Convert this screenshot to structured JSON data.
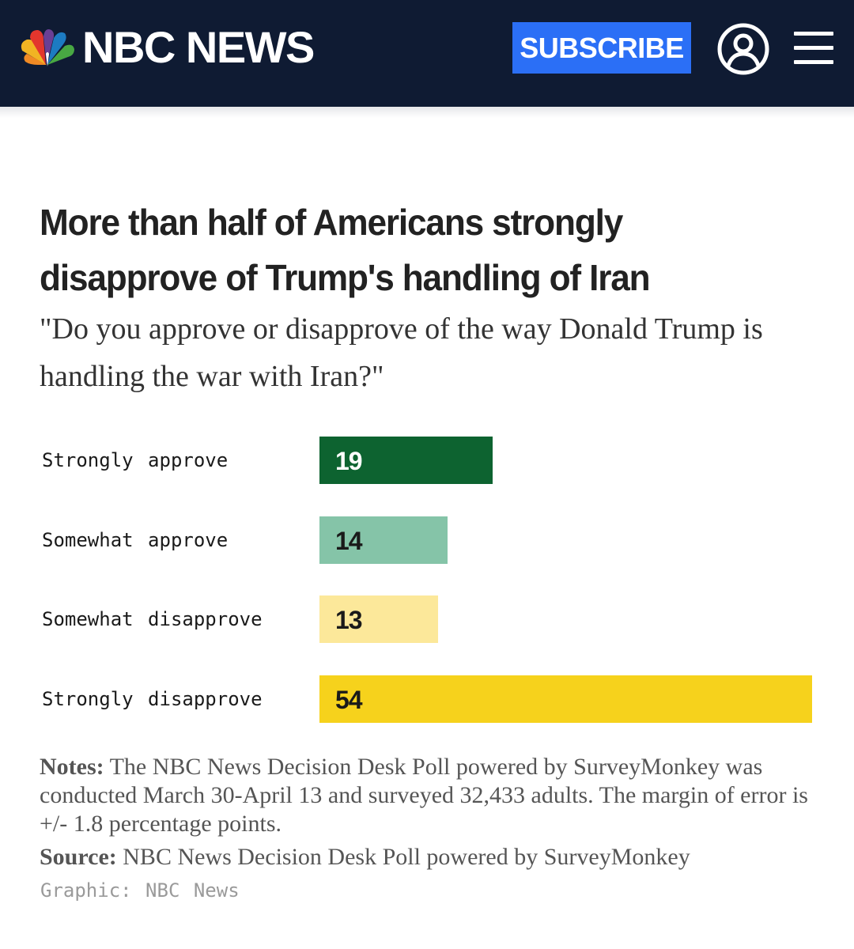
{
  "header": {
    "brand": "NBC NEWS",
    "subscribe_label": "SUBSCRIBE",
    "account_icon": "account-icon",
    "menu_icon": "hamburger-menu-icon",
    "background_color": "#0f1b33",
    "subscribe_color": "#2b6ff6"
  },
  "chart_data": {
    "type": "bar",
    "orientation": "horizontal",
    "title": "More than half of Americans strongly disapprove of Trump's handling of Iran",
    "subtitle": "\"Do you approve or disapprove of the way Donald Trump is handling the war with Iran?\"",
    "categories": [
      "Strongly approve",
      "Somewhat approve",
      "Somewhat disapprove",
      "Strongly disapprove"
    ],
    "values": [
      19,
      14,
      13,
      54
    ],
    "colors": [
      "#0d6330",
      "#85c4a8",
      "#fce89a",
      "#f6d21c"
    ],
    "value_label_colors": [
      "#ffffff",
      "#1a1a1a",
      "#1a1a1a",
      "#1a1a1a"
    ],
    "xlim": [
      0,
      54
    ],
    "xlabel": "",
    "ylabel": "",
    "grid": false
  },
  "notes": {
    "label": "Notes:",
    "text": " The NBC News Decision Desk Poll powered by SurveyMonkey was conducted March 30-April 13 and surveyed 32,433 adults. The margin of error is +/- 1.8 percentage points."
  },
  "source": {
    "label": "Source:",
    "text": " NBC News Decision Desk Poll powered by SurveyMonkey"
  },
  "credit": "Graphic: NBC News"
}
